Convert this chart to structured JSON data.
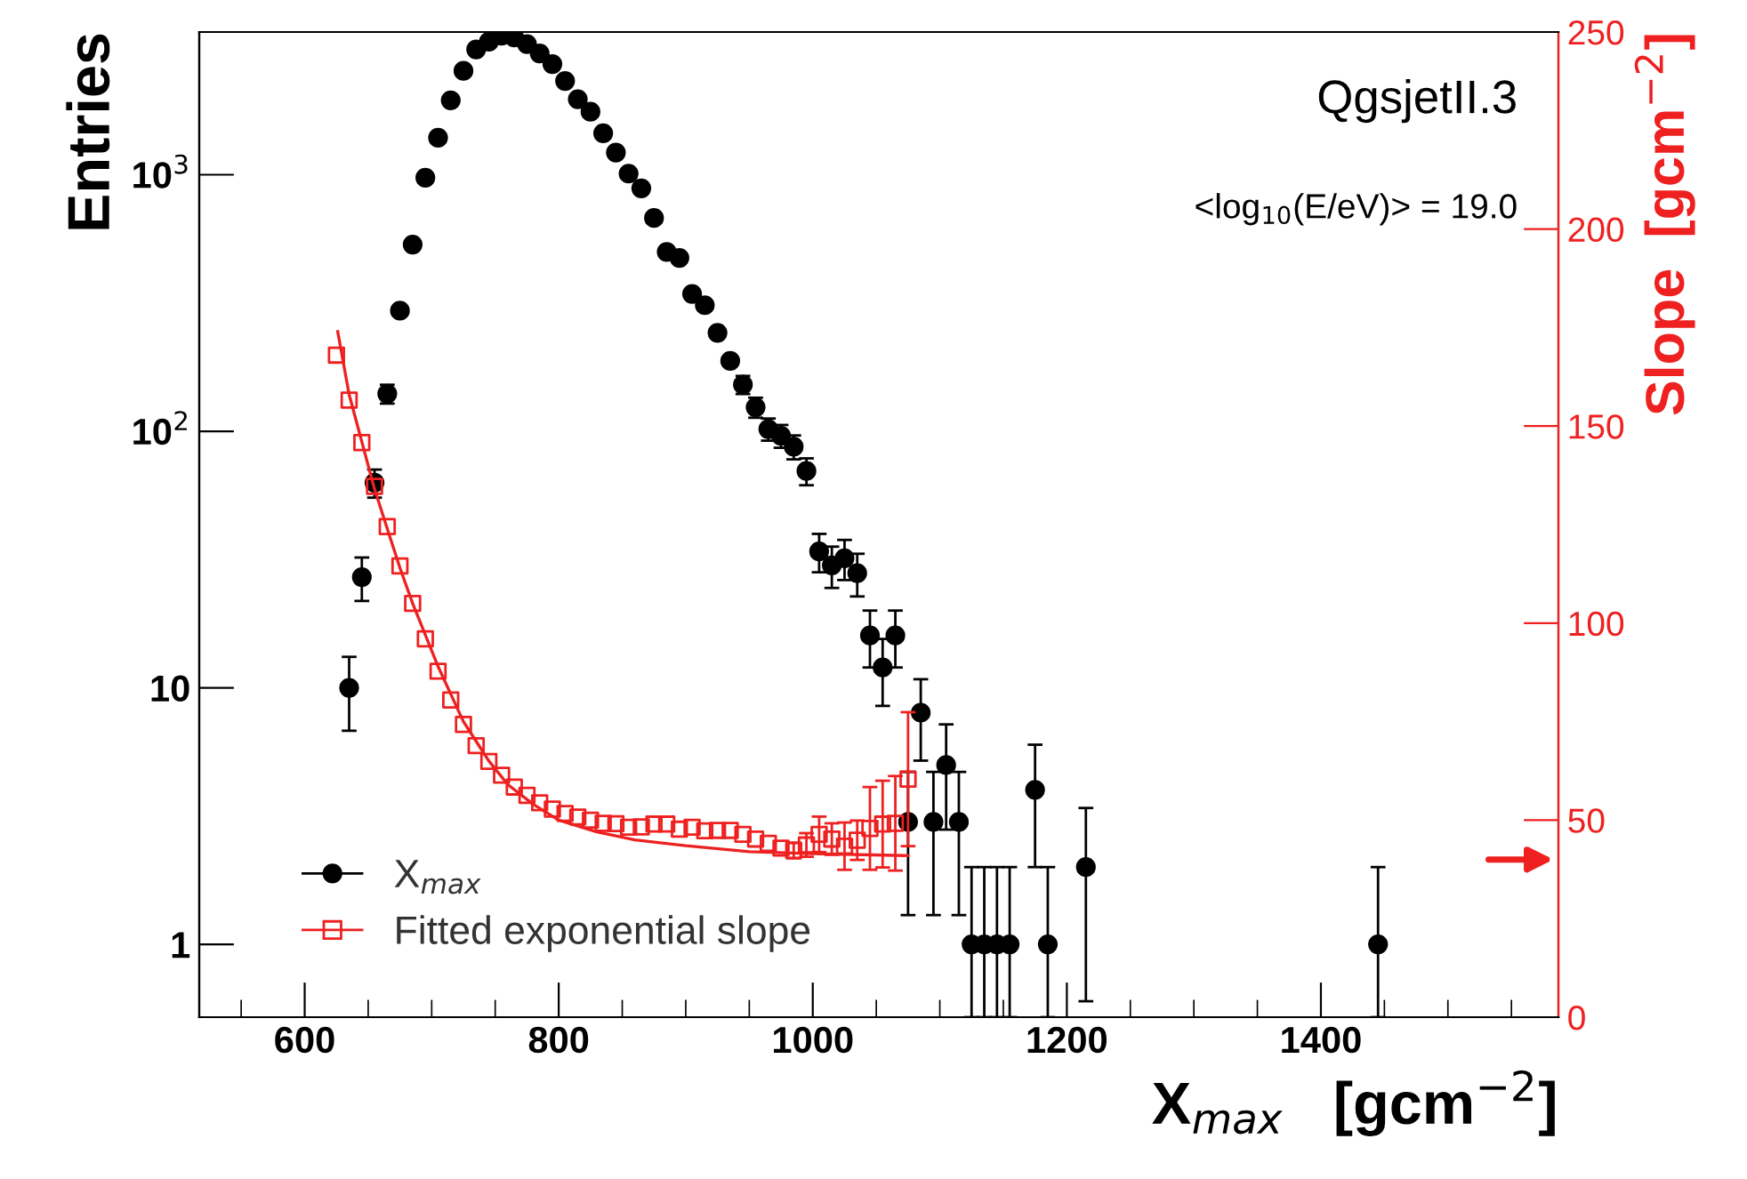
{
  "chart_data": {
    "type": "scatter",
    "xlabel": "X$_{max}$   [gcm$^{−2}$]",
    "ylabel": "Entries",
    "y2label": "Slope  [gcm$^{−2}$]",
    "annotations": [
      "QgsjetII.3",
      "<log$_{10}$(E/eV)> = 19.0"
    ],
    "log": "y",
    "grid": false,
    "legend": "bottom left",
    "xlim": [
      517,
      1587
    ],
    "xticks": [
      600,
      800,
      1000,
      1200,
      1400
    ],
    "ylim": [
      0.52,
      3600
    ],
    "yticks": [
      1,
      10,
      {
        "value": 100,
        "label": "10$^{2}$"
      },
      {
        "value": 1000,
        "label": "10$^{3}$"
      }
    ],
    "y2lim": [
      0,
      250
    ],
    "y2ticks": [
      0,
      50,
      100,
      150,
      200,
      250
    ],
    "series": [
      {
        "name": "X$_{max}$",
        "marker": "circle",
        "color": "#000000",
        "x": [
          635,
          645,
          655,
          665,
          675,
          685,
          695,
          705,
          715,
          725,
          735,
          745,
          755,
          765,
          775,
          785,
          795,
          805,
          815,
          825,
          835,
          845,
          855,
          865,
          875,
          885,
          895,
          905,
          915,
          925,
          935,
          945,
          955,
          965,
          975,
          985,
          995,
          1005,
          1015,
          1025,
          1035,
          1045,
          1055,
          1065,
          1075,
          1085,
          1095,
          1105,
          1115,
          1125,
          1135,
          1145,
          1155,
          1175,
          1185,
          1215,
          1445
        ],
        "values": [
          10,
          27,
          63,
          140,
          295,
          534,
          973,
          1393,
          1950,
          2540,
          3080,
          3300,
          3480,
          3430,
          3230,
          2970,
          2700,
          2320,
          1970,
          1760,
          1450,
          1220,
          1010,
          885,
          678,
          500,
          474,
          343,
          310,
          242,
          188,
          152,
          124,
          102,
          96,
          87,
          70,
          34,
          30,
          32,
          28,
          16,
          12,
          16,
          3,
          8,
          3,
          5,
          3,
          1,
          1,
          1,
          1,
          4,
          1,
          2,
          1
        ],
        "errors": [
          3.2,
          5.2,
          7.9,
          11.8,
          null,
          null,
          null,
          null,
          null,
          null,
          null,
          null,
          null,
          null,
          null,
          null,
          null,
          null,
          null,
          null,
          null,
          null,
          null,
          null,
          null,
          null,
          null,
          null,
          null,
          null,
          null,
          12.3,
          11.1,
          10.1,
          9.8,
          9.3,
          8.4,
          5.8,
          5.5,
          5.7,
          5.3,
          4,
          3.5,
          4,
          1.7,
          2.8,
          1.7,
          2.2,
          1.7,
          [
            0.52,
            2
          ],
          [
            0.52,
            2
          ],
          [
            0.52,
            2
          ],
          [
            0.52,
            2
          ],
          2,
          [
            0.52,
            2
          ],
          1.4,
          [
            0.52,
            2
          ]
        ]
      },
      {
        "name": "Fitted exponential slope",
        "marker": "square",
        "color": "#ee2020",
        "axis": "y2",
        "line_style": "solid",
        "x": [
          625,
          635,
          645,
          655,
          665,
          675,
          685,
          695,
          705,
          715,
          725,
          735,
          745,
          755,
          765,
          775,
          785,
          795,
          805,
          815,
          825,
          835,
          845,
          855,
          865,
          875,
          885,
          895,
          905,
          915,
          925,
          935,
          945,
          955,
          965,
          975,
          985,
          995,
          1005,
          1015,
          1025,
          1035,
          1045,
          1055,
          1065,
          1075
        ],
        "values": [
          168,
          156.6,
          145.8,
          134.7,
          124.5,
          114.5,
          105,
          96,
          87.8,
          80.5,
          74.3,
          68.9,
          64.9,
          61.4,
          58.4,
          56.3,
          54.4,
          52.8,
          51.7,
          50.8,
          50,
          49.2,
          49.1,
          48.2,
          48.3,
          49,
          49,
          47.7,
          48.2,
          47.3,
          47.4,
          47.4,
          46.4,
          45.2,
          44.1,
          42.9,
          42.3,
          43.7,
          46.4,
          45.2,
          43.4,
          44.9,
          47.9,
          49,
          49.2,
          60.4
        ],
        "errors": [
          null,
          null,
          null,
          null,
          null,
          null,
          null,
          null,
          null,
          null,
          null,
          null,
          null,
          null,
          null,
          null,
          null,
          null,
          null,
          null,
          null,
          null,
          null,
          null,
          null,
          null,
          null,
          null,
          null,
          null,
          null,
          null,
          null,
          null,
          null,
          null,
          2,
          3,
          4.5,
          4,
          6,
          5,
          10.5,
          11,
          12,
          17
        ]
      },
      {
        "type": "line",
        "color": "#ee2020",
        "axis": "y2",
        "line_style": "solid",
        "marker": "none",
        "x": [
          626,
          635,
          645,
          655,
          665,
          675,
          685,
          695,
          705,
          715,
          725,
          735,
          745,
          760,
          780,
          800,
          830,
          860,
          900,
          950,
          1000,
          1075
        ],
        "values": [
          174,
          158,
          146,
          134,
          124,
          114,
          105,
          97,
          89,
          82,
          75,
          70,
          65,
          59,
          54,
          50,
          47,
          45,
          43.5,
          42,
          41.5,
          41
        ]
      }
    ]
  }
}
